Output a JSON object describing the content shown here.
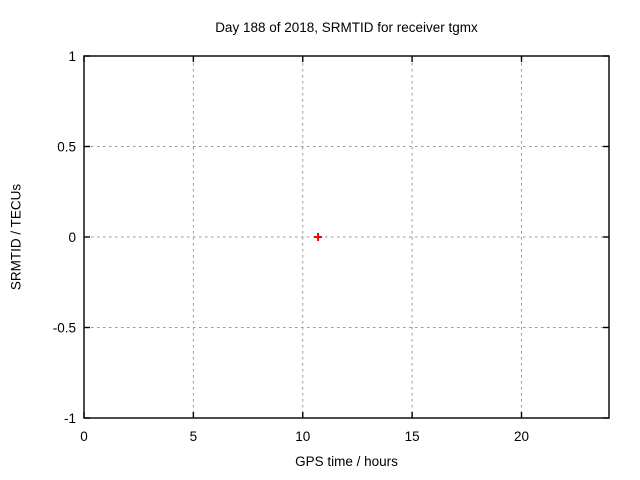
{
  "page": {
    "background_color": "#ffffff",
    "text_color": "#000000"
  },
  "chart_data": {
    "type": "scatter",
    "title": "Day 188 of 2018, SRMTID for receiver tgmx",
    "xlabel": "GPS time / hours",
    "ylabel": "SRMTID / TECUs",
    "xlim": [
      0,
      24
    ],
    "ylim": [
      -1,
      1
    ],
    "xticks": {
      "values": [
        0,
        5,
        10,
        15,
        20
      ],
      "labels": [
        "0",
        "5",
        "10",
        "15",
        "20"
      ]
    },
    "yticks": {
      "values": [
        -1,
        -0.5,
        0,
        0.5,
        1
      ],
      "labels": [
        "-1",
        "-0.5",
        "0",
        "0.5",
        "1"
      ]
    },
    "grid": {
      "show": true,
      "style": "dashed",
      "color": "#999999",
      "x_values": [
        5,
        10,
        15,
        20
      ],
      "y_values": [
        -0.5,
        0,
        0.5
      ]
    },
    "legend": {
      "show": false
    },
    "axis_color": "#000000",
    "series": [
      {
        "name": "SRMTID",
        "marker": "plus",
        "color": "#ff0000",
        "points": [
          {
            "x": 10.7,
            "y": 0.0
          }
        ]
      }
    ]
  }
}
